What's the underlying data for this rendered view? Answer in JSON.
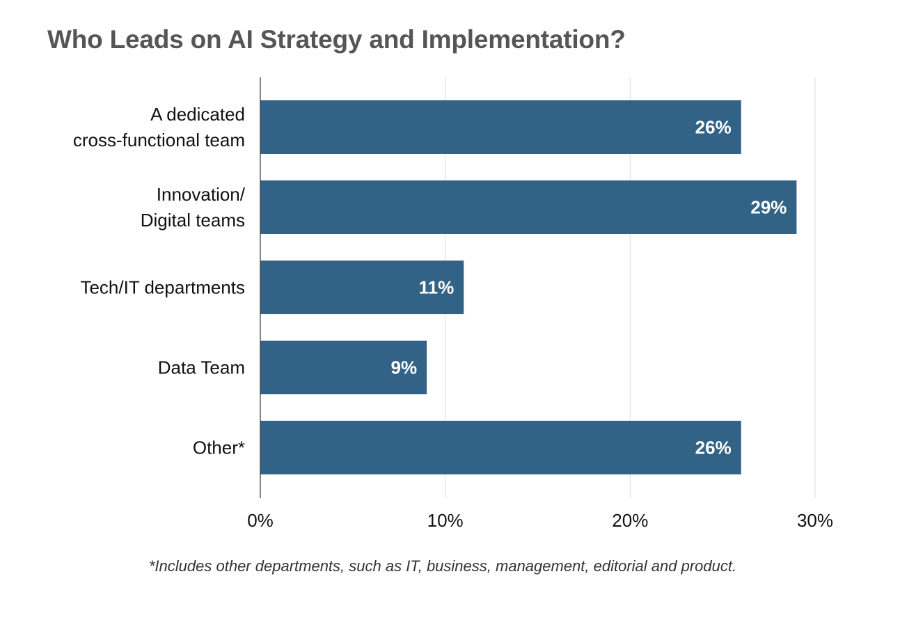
{
  "chart_data": {
    "type": "bar",
    "orientation": "horizontal",
    "title": "Who Leads on AI Strategy and Implementation?",
    "categories": [
      [
        "A dedicated",
        "cross-functional team"
      ],
      [
        "Innovation/",
        "Digital teams"
      ],
      [
        "Tech/IT departments"
      ],
      [
        "Data Team"
      ],
      [
        "Other*"
      ]
    ],
    "values": [
      26,
      29,
      11,
      9,
      26
    ],
    "value_labels": [
      "26%",
      "29%",
      "11%",
      "9%",
      "26%"
    ],
    "xlim": [
      0,
      30
    ],
    "x_ticks": [
      0,
      10,
      20,
      30
    ],
    "x_tick_labels": [
      "0%",
      "10%",
      "20%",
      "30%"
    ],
    "grid": "vertical",
    "legend": "none",
    "colors": {
      "bar": "#336287",
      "bar_label": "#ffffff",
      "grid": "#d9d9d9",
      "axis": "#333333",
      "text": "#111111",
      "title": "#555555"
    },
    "footnote": "*Includes other departments, such as IT, business, management, editorial and product."
  }
}
